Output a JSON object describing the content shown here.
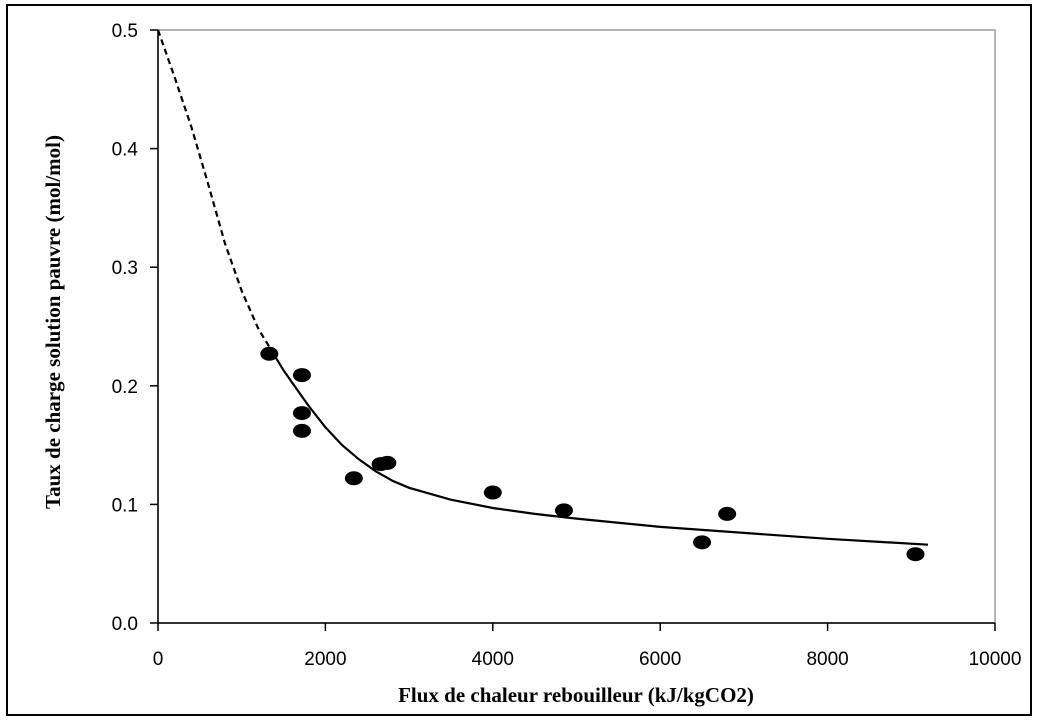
{
  "chart_data": {
    "type": "scatter",
    "title": "",
    "xlabel": "Flux de chaleur rebouilleur (kJ/kgCO2)",
    "ylabel": "Taux de charge solution pauvre (mol/mol)",
    "xlim": [
      0,
      10000
    ],
    "ylim": [
      0,
      0.5
    ],
    "x_ticks": [
      0,
      2000,
      4000,
      6000,
      8000,
      10000
    ],
    "x_tick_labels": [
      "0",
      "2000",
      "4000",
      "6000",
      "8000",
      "10000"
    ],
    "y_ticks": [
      0,
      0.1,
      0.2,
      0.3,
      0.4,
      0.5
    ],
    "y_tick_labels": [
      "0.0",
      "0.1",
      "0.2",
      "0.3",
      "0.4",
      "0.5"
    ],
    "grid": false,
    "legend": "none",
    "series": [
      {
        "kind": "points",
        "x": [
          1330,
          1720,
          1720,
          1720,
          2340,
          2660,
          2740,
          4000,
          4850,
          6500,
          6800,
          9050
        ],
        "y": [
          0.227,
          0.209,
          0.177,
          0.162,
          0.122,
          0.134,
          0.135,
          0.11,
          0.095,
          0.068,
          0.092,
          0.058
        ],
        "color": "#000000"
      },
      {
        "kind": "fit-solid",
        "x": [
          1380,
          1500,
          1600,
          1700,
          1800,
          1900,
          2000,
          2200,
          2400,
          2600,
          2800,
          3000,
          3500,
          4000,
          4500,
          5000,
          6000,
          7000,
          8000,
          9200
        ],
        "y": [
          0.227,
          0.213,
          0.203,
          0.193,
          0.183,
          0.174,
          0.165,
          0.15,
          0.138,
          0.128,
          0.12,
          0.114,
          0.104,
          0.097,
          0.092,
          0.088,
          0.081,
          0.076,
          0.071,
          0.066
        ],
        "color": "#000000"
      },
      {
        "kind": "fit-dashed",
        "x": [
          0,
          200,
          400,
          600,
          800,
          1000,
          1200,
          1380
        ],
        "y": [
          0.5,
          0.46,
          0.418,
          0.37,
          0.32,
          0.28,
          0.248,
          0.227
        ],
        "color": "#000000"
      }
    ]
  }
}
